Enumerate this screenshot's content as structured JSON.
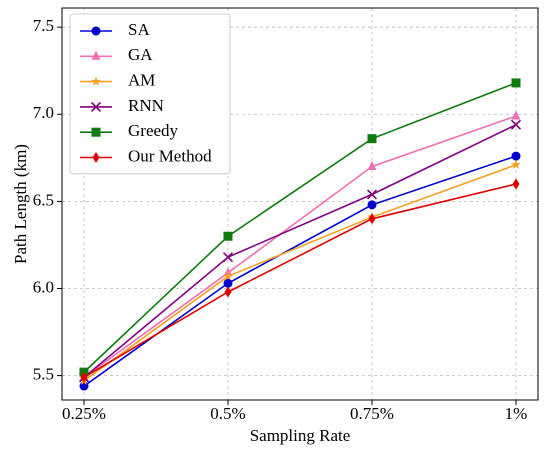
{
  "chart_data": {
    "type": "line",
    "x_label": "Sampling Rate",
    "y_label": "Path Length (km)",
    "categories": [
      "0.25%",
      "0.5%",
      "0.75%",
      "1%"
    ],
    "ylim": [
      5.36,
      7.61
    ],
    "yticks": [
      5.5,
      {
        "value": 6,
        "label": "6.0"
      },
      6.5,
      {
        "value": 7,
        "label": "7.0"
      },
      7.5
    ],
    "grid": true,
    "legend": "upper left",
    "series": [
      {
        "name": "SA",
        "color": "#0000d0",
        "marker": "circle",
        "values": [
          5.44,
          6.03,
          6.48,
          6.76
        ]
      },
      {
        "name": "GA",
        "color": "#f06fb0",
        "marker": "triangle",
        "values": [
          5.49,
          6.09,
          6.7,
          6.99
        ]
      },
      {
        "name": "AM",
        "color": "#f5a020",
        "marker": "star",
        "values": [
          5.47,
          6.07,
          6.41,
          6.71
        ]
      },
      {
        "name": "RNN",
        "color": "#800080",
        "marker": "x",
        "values": [
          5.49,
          6.18,
          6.54,
          6.94
        ]
      },
      {
        "name": "Greedy",
        "color": "#107a10",
        "marker": "square",
        "values": [
          5.52,
          6.3,
          6.86,
          7.18
        ]
      },
      {
        "name": "Our Method",
        "color": "#e00000",
        "marker": "diamond",
        "values": [
          5.49,
          5.98,
          6.4,
          6.6
        ]
      }
    ]
  }
}
